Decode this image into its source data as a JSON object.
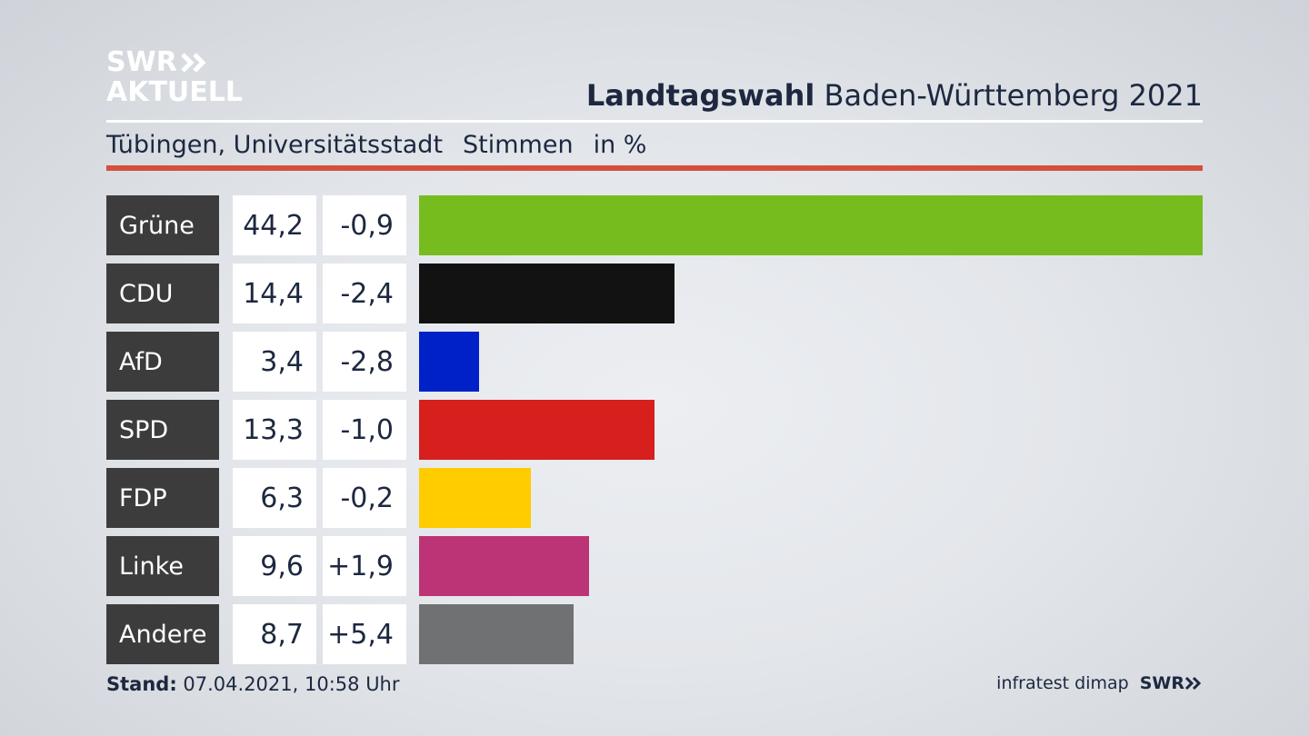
{
  "brand": {
    "line1": "SWR",
    "line2": "AKTUELL"
  },
  "header": {
    "title_bold": "Landtagswahl",
    "title_rest": "Baden-Württemberg 2021",
    "location": "Tübingen, Universitätsstadt",
    "measure": "Stimmen",
    "unit": "in %"
  },
  "chart_data": {
    "type": "bar",
    "categories": [
      "Grüne",
      "CDU",
      "AfD",
      "SPD",
      "FDP",
      "Linke",
      "Andere"
    ],
    "values": [
      44.2,
      14.4,
      3.4,
      13.3,
      6.3,
      9.6,
      8.7
    ],
    "value_labels": [
      "44,2",
      "14,4",
      "3,4",
      "13,3",
      "6,3",
      "9,6",
      "8,7"
    ],
    "diff_labels": [
      "-0,9",
      "-2,4",
      "-2,8",
      "-1,0",
      "-0,2",
      "+1,9",
      "+5,4"
    ],
    "colors": [
      "#77bc1f",
      "#121212",
      "#0021c8",
      "#d71f1d",
      "#ffcc00",
      "#bc3475",
      "#707173"
    ],
    "xlim": [
      0,
      44.2
    ],
    "orientation": "horizontal"
  },
  "footer": {
    "stand_label": "Stand:",
    "stand_value": "07.04.2021, 10:58 Uhr",
    "source": "infratest dimap",
    "logo": "SWR"
  }
}
